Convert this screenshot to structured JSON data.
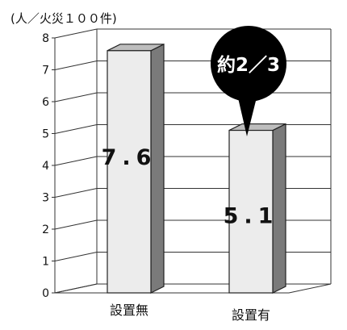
{
  "chart_data": {
    "type": "bar",
    "unit_label": "(人／火災１００件)",
    "categories": [
      "設置無",
      "設置有"
    ],
    "values": [
      7.6,
      5.1
    ],
    "value_labels": [
      "7.6",
      "5.1"
    ],
    "ylim": [
      0,
      8
    ],
    "yticks": [
      0,
      1,
      2,
      3,
      4,
      5,
      6,
      7,
      8
    ],
    "grid": true,
    "annotation": "約2／3",
    "colors": {
      "bar_front": "#ececec",
      "bar_side": "#7a7a7a",
      "bar_top": "#bdbdbd",
      "callout": "#000000",
      "callout_text": "#ffffff"
    }
  }
}
